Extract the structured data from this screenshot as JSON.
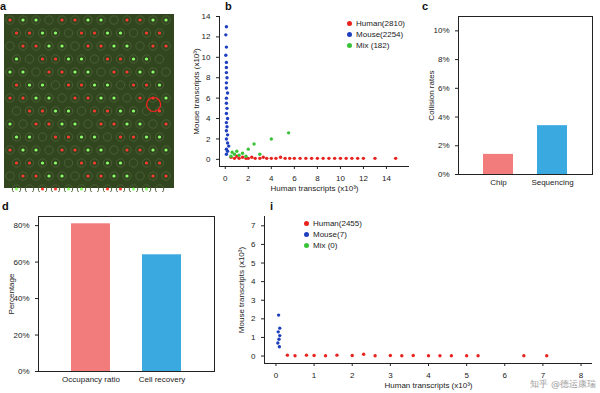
{
  "chart_data": [
    {
      "type": "image",
      "title": "a"
    },
    {
      "type": "scatter",
      "title": "b",
      "x_label": "Human transcripts (x10³)",
      "y_label": "Mouse transcripts (x10³)",
      "xlim": [
        -0.5,
        16
      ],
      "ylim": [
        -0.7,
        14
      ],
      "xticks": [
        0,
        2,
        4,
        6,
        8,
        10,
        12,
        14
      ],
      "yticks": [
        0,
        2,
        4,
        6,
        8,
        10,
        12,
        14
      ],
      "legend": "top-right",
      "marker": "circle",
      "series": [
        {
          "name": "Human(2810)",
          "color": "#e8231f",
          "x": [
            0.5,
            0.8,
            1,
            1.2,
            1.5,
            1.8,
            2,
            2.3,
            2.6,
            3,
            3.3,
            3.6,
            4,
            4.4,
            4.8,
            5.2,
            5.6,
            6,
            6.5,
            7,
            7.5,
            8,
            8.5,
            9,
            9.5,
            10,
            10.5,
            11,
            11.5,
            12,
            13,
            14.8
          ],
          "values": [
            0.2,
            0.1,
            0.3,
            0.1,
            0.2,
            0.1,
            0.1,
            0.2,
            0.1,
            0.1,
            0.2,
            0.1,
            0.1,
            0.1,
            0.2,
            0.1,
            0.1,
            0.1,
            0.1,
            0.1,
            0.1,
            0.1,
            0.1,
            0.1,
            0.1,
            0.1,
            0.1,
            0.1,
            0.1,
            0.1,
            0.1,
            0.1
          ]
        },
        {
          "name": "Mouse(2254)",
          "color": "#1f3fbf",
          "x": [
            0.1,
            0.2,
            0.1,
            0.3,
            0.2,
            0.1,
            0.2,
            0.1,
            0.15,
            0.1,
            0.2,
            0.1,
            0.15,
            0.1,
            0.1,
            0.2,
            0.1,
            0.1,
            0.15,
            0.1,
            0.1,
            0.1,
            0.05,
            0.1,
            0.05,
            0.1
          ],
          "values": [
            0.5,
            0.8,
            1,
            1.3,
            1.6,
            2,
            2.4,
            2.8,
            3.2,
            3.6,
            4,
            4.5,
            5,
            5.5,
            6,
            6.5,
            7,
            7.5,
            8,
            8.5,
            9,
            9.5,
            10.2,
            11,
            12.2,
            13
          ]
        },
        {
          "name": "Mix (182)",
          "color": "#39c23a",
          "x": [
            0.5,
            0.8,
            1,
            1.2,
            1.5,
            2,
            2.5,
            4,
            5.5,
            1.8,
            0.6,
            3
          ],
          "values": [
            0.3,
            0.5,
            0.8,
            0.4,
            0.6,
            1,
            1.5,
            2,
            2.6,
            0.3,
            0.7,
            0.5
          ]
        }
      ]
    },
    {
      "type": "bar",
      "title": "c",
      "y_label": "Collision rates",
      "categories": [
        "Chip",
        "Sequencing"
      ],
      "values": [
        1.4,
        3.4
      ],
      "colors": [
        "#f27b7b",
        "#3aa9e0"
      ],
      "ylim": [
        0,
        11
      ],
      "yticks": [
        {
          "value": 0,
          "label": "0%"
        },
        {
          "value": 2,
          "label": "2%"
        },
        {
          "value": 4,
          "label": "4%"
        },
        {
          "value": 6,
          "label": "6%"
        },
        {
          "value": 8,
          "label": "8%"
        },
        {
          "value": 10,
          "label": "10%"
        }
      ]
    },
    {
      "type": "bar",
      "title": "d",
      "y_label": "Percentage",
      "categories": [
        "Occupancy ratio",
        "Cell recovery"
      ],
      "values": [
        81,
        64
      ],
      "colors": [
        "#f27b7b",
        "#3aa9e0"
      ],
      "ylim": [
        0,
        85
      ],
      "yticks": [
        {
          "value": 0,
          "label": "0%"
        },
        {
          "value": 20,
          "label": "20%"
        },
        {
          "value": 40,
          "label": "40%"
        },
        {
          "value": 60,
          "label": "60%"
        },
        {
          "value": 80,
          "label": "80%"
        }
      ]
    },
    {
      "type": "scatter",
      "title": "i",
      "x_label": "Human transcripts (x10³)",
      "y_label": "Mouse transcripts (x10³)",
      "xlim": [
        -0.3,
        8.3
      ],
      "ylim": [
        -0.4,
        7.5
      ],
      "xticks": [
        0,
        1,
        2,
        3,
        4,
        5,
        6,
        7,
        8
      ],
      "yticks": [
        0,
        1,
        2,
        3,
        4,
        5,
        6,
        7
      ],
      "legend": "top-left",
      "marker": "circle",
      "annotations": [
        "知乎 @德运康瑞"
      ],
      "series": [
        {
          "name": "Human(2455)",
          "color": "#e8231f",
          "x": [
            0.3,
            0.5,
            0.8,
            1,
            1.3,
            1.6,
            2,
            2.3,
            2.6,
            3,
            3.3,
            3.6,
            4,
            4.3,
            4.6,
            5,
            5.3,
            6.5,
            7.1
          ],
          "values": [
            0.05,
            0.02,
            0.05,
            0.03,
            0.02,
            0.05,
            0.03,
            0.1,
            0.02,
            0.03,
            0.02,
            0.03,
            0.02,
            0.02,
            0.02,
            0.02,
            0.02,
            0.02,
            0.02
          ]
        },
        {
          "name": "Mouse(7)",
          "color": "#1f3fbf",
          "x": [
            0.05,
            0.08,
            0.1,
            0.06,
            0.1,
            0.07,
            0.09
          ],
          "values": [
            0.7,
            0.9,
            1.1,
            1.3,
            1.5,
            2.2,
            0.5
          ]
        },
        {
          "name": "Mix (0)",
          "color": "#39c23a",
          "x": [],
          "values": []
        }
      ]
    }
  ]
}
